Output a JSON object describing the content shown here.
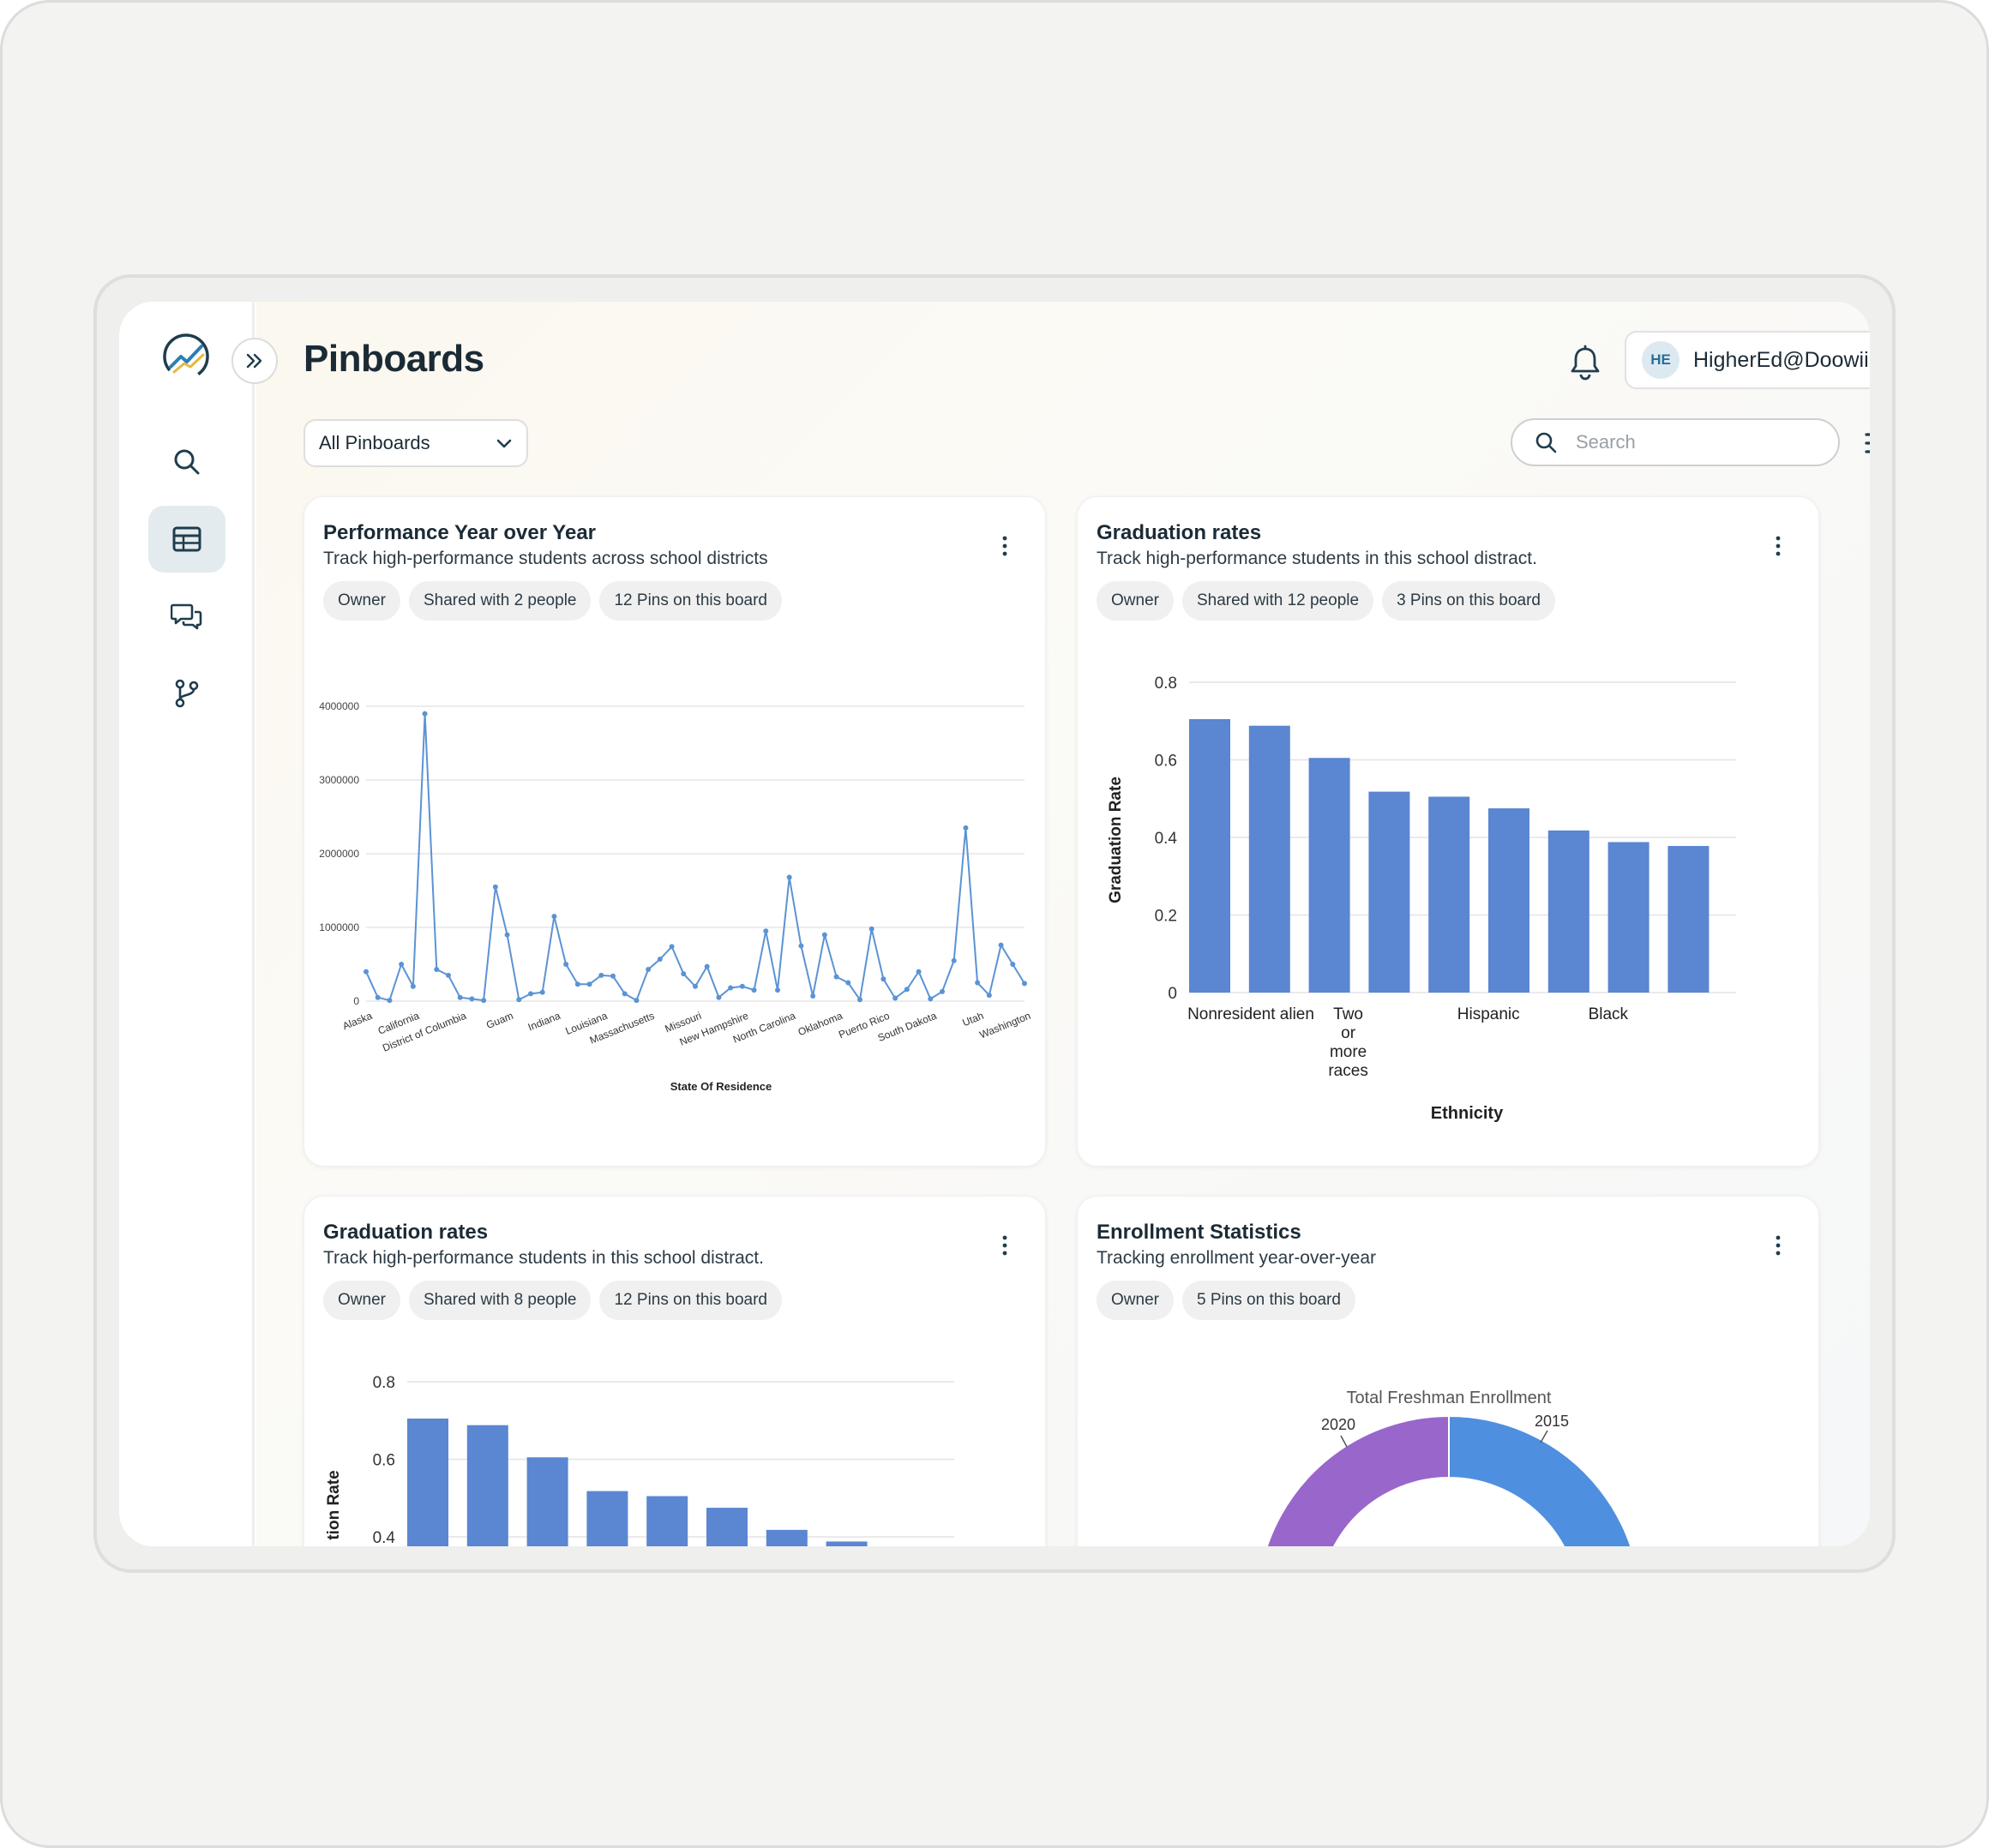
{
  "header": {
    "title": "Pinboards",
    "user": {
      "initials": "HE",
      "email": "HigherEd@Doowii.io"
    }
  },
  "toolbar": {
    "filter_value": "All Pinboards",
    "search_placeholder": "Search"
  },
  "sidebar": {
    "items": [
      {
        "icon": "search-icon"
      },
      {
        "icon": "table-icon",
        "active": true
      },
      {
        "icon": "chat-icon"
      },
      {
        "icon": "branch-icon"
      }
    ]
  },
  "colors": {
    "bar": "#5a86d2",
    "line": "#5b93d4",
    "accent": "#2a7fb5"
  },
  "cards": [
    {
      "title": "Performance Year over Year",
      "description": "Track high-performance students across school districts",
      "chips": [
        "Owner",
        "Shared with 2 people",
        "12 Pins on this board"
      ]
    },
    {
      "title": "Graduation rates",
      "description": "Track high-performance students in this school distract.",
      "chips": [
        "Owner",
        "Shared with 12 people",
        "3 Pins on this board"
      ]
    },
    {
      "title": "Graduation rates",
      "description": "Track high-performance students in this school distract.",
      "chips": [
        "Owner",
        "Shared with 8 people",
        "12 Pins on this board"
      ]
    },
    {
      "title": "Enrollment Statistics",
      "description": "Tracking enrollment year-over-year",
      "chips": [
        "Owner",
        "5 Pins on this board"
      ]
    }
  ],
  "chart_data": [
    {
      "type": "line",
      "xlabel": "State Of Residence",
      "ylabel": "",
      "ylim": [
        0,
        4000000
      ],
      "yticks": [
        "0",
        "1000000",
        "2000000",
        "3000000",
        "4000000"
      ],
      "tick_labels": [
        "Alaska",
        "California",
        "District of Columbia",
        "Guam",
        "Indiana",
        "Louisiana",
        "Massachusetts",
        "Missouri",
        "New Hampshire",
        "North Carolina",
        "Oklahoma",
        "Puerto Rico",
        "South Dakota",
        "Utah",
        "Washington"
      ],
      "values": [
        400000,
        50000,
        10000,
        500000,
        200000,
        3900000,
        430000,
        350000,
        50000,
        30000,
        10000,
        1550000,
        900000,
        20000,
        100000,
        120000,
        1150000,
        500000,
        230000,
        230000,
        350000,
        340000,
        100000,
        10000,
        430000,
        570000,
        740000,
        370000,
        200000,
        470000,
        50000,
        180000,
        200000,
        150000,
        950000,
        150000,
        1680000,
        750000,
        70000,
        900000,
        330000,
        250000,
        20000,
        980000,
        300000,
        40000,
        160000,
        400000,
        30000,
        130000,
        550000,
        2350000,
        250000,
        80000,
        760000,
        500000,
        240000
      ],
      "grid": true
    },
    {
      "type": "bar",
      "xlabel": "Ethnicity",
      "ylabel": "Graduation Rate",
      "ylim": [
        0,
        0.8
      ],
      "yticks": [
        "0",
        "0.2",
        "0.4",
        "0.6",
        "0.8"
      ],
      "tick_labels": [
        "Nonresident alien",
        "Two or more races",
        "Hispanic",
        "Black"
      ],
      "values": [
        0.705,
        0.688,
        0.605,
        0.518,
        0.505,
        0.475,
        0.418,
        0.388,
        0.378
      ],
      "grid": true
    },
    {
      "type": "bar",
      "xlabel": "",
      "ylabel": "tion Rate",
      "ylim": [
        0,
        0.8
      ],
      "yticks": [
        "0.4",
        "0.6",
        "0.8"
      ],
      "values": [
        0.705,
        0.688,
        0.605,
        0.518,
        0.505,
        0.475,
        0.418,
        0.388
      ],
      "grid": true
    },
    {
      "type": "pie",
      "title": "Total Freshman Enrollment",
      "labels": [
        "2015",
        "2020"
      ],
      "colors": [
        "#4f8fdf",
        "#9966cc",
        "#f6a43c",
        "#d9c400"
      ]
    }
  ]
}
